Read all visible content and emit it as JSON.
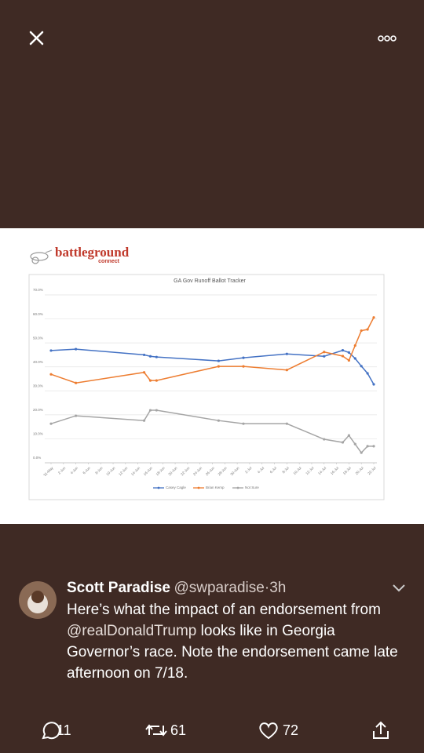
{
  "logo": {
    "name": "battleground",
    "sub": "connect"
  },
  "chart_data": {
    "type": "line",
    "title": "GA Gov Runoff Ballot Tracker",
    "x": [
      0,
      4,
      15,
      16,
      17,
      27,
      31,
      38,
      44,
      47,
      48,
      49,
      50,
      51,
      52
    ],
    "xlim": [
      0,
      52
    ],
    "xticks": [
      {
        "value": 0,
        "label": "31-May"
      },
      {
        "value": 2,
        "label": "2-Jun"
      },
      {
        "value": 4,
        "label": "4-Jun"
      },
      {
        "value": 6,
        "label": "6-Jun"
      },
      {
        "value": 8,
        "label": "8-Jun"
      },
      {
        "value": 10,
        "label": "10-Jun"
      },
      {
        "value": 12,
        "label": "12-Jun"
      },
      {
        "value": 14,
        "label": "14-Jun"
      },
      {
        "value": 16,
        "label": "16-Jun"
      },
      {
        "value": 18,
        "label": "18-Jun"
      },
      {
        "value": 20,
        "label": "20-Jun"
      },
      {
        "value": 22,
        "label": "22-Jun"
      },
      {
        "value": 24,
        "label": "24-Jun"
      },
      {
        "value": 26,
        "label": "26-Jun"
      },
      {
        "value": 28,
        "label": "28-Jun"
      },
      {
        "value": 30,
        "label": "30-Jun"
      },
      {
        "value": 32,
        "label": "2-Jul"
      },
      {
        "value": 34,
        "label": "4-Jul"
      },
      {
        "value": 36,
        "label": "6-Jul"
      },
      {
        "value": 38,
        "label": "8-Jul"
      },
      {
        "value": 40,
        "label": "10-Jul"
      },
      {
        "value": 42,
        "label": "12-Jul"
      },
      {
        "value": 44,
        "label": "14-Jul"
      },
      {
        "value": 46,
        "label": "16-Jul"
      },
      {
        "value": 48,
        "label": "18-Jul"
      },
      {
        "value": 50,
        "label": "20-Jul"
      },
      {
        "value": 52,
        "label": "22-Jul"
      }
    ],
    "ylim": [
      0,
      70
    ],
    "yticks": [
      {
        "value": 0,
        "label": "0.0%"
      },
      {
        "value": 10,
        "label": "10.0%"
      },
      {
        "value": 20,
        "label": "20.0%"
      },
      {
        "value": 30,
        "label": "30.0%"
      },
      {
        "value": 40,
        "label": "40.0%"
      },
      {
        "value": 50,
        "label": "50.0%"
      },
      {
        "value": 60,
        "label": "60.0%"
      },
      {
        "value": 70,
        "label": "70.0%"
      }
    ],
    "grid": true,
    "legend": "bottom",
    "series": [
      {
        "name": "Casey Cagle",
        "color": "#4472c4",
        "values": [
          46.8,
          47.4,
          45,
          44.4,
          44.1,
          42.5,
          43.8,
          45.4,
          44.4,
          46.9,
          46,
          43.5,
          40.3,
          37.3,
          32.7
        ]
      },
      {
        "name": "Brian Kemp",
        "color": "#ed7d31",
        "values": [
          36.9,
          33.3,
          37.7,
          34.3,
          34.3,
          40.2,
          40.2,
          38.7,
          46.2,
          44.5,
          42.7,
          48.9,
          55.1,
          55.6,
          60.6
        ]
      },
      {
        "name": "Not Sure",
        "color": "#a5a5a5",
        "values": [
          16.3,
          19.6,
          17.6,
          21.9,
          21.9,
          17.6,
          16.3,
          16.3,
          9.8,
          8.5,
          11.4,
          7.8,
          4.2,
          6.9,
          6.9
        ]
      }
    ]
  },
  "tweet": {
    "name": "Scott Paradise",
    "handle": "@swparadise",
    "separator": "·",
    "time": "3h",
    "text_before": "Here’s what the impact of an endorsement from ",
    "mention": "@realDonaldTrump",
    "text_after": " looks like in Georgia Governor’s race. Note the endorsement came late afternoon on 7/18."
  },
  "actions": {
    "replies": 11,
    "retweets": 61,
    "likes": 72
  }
}
